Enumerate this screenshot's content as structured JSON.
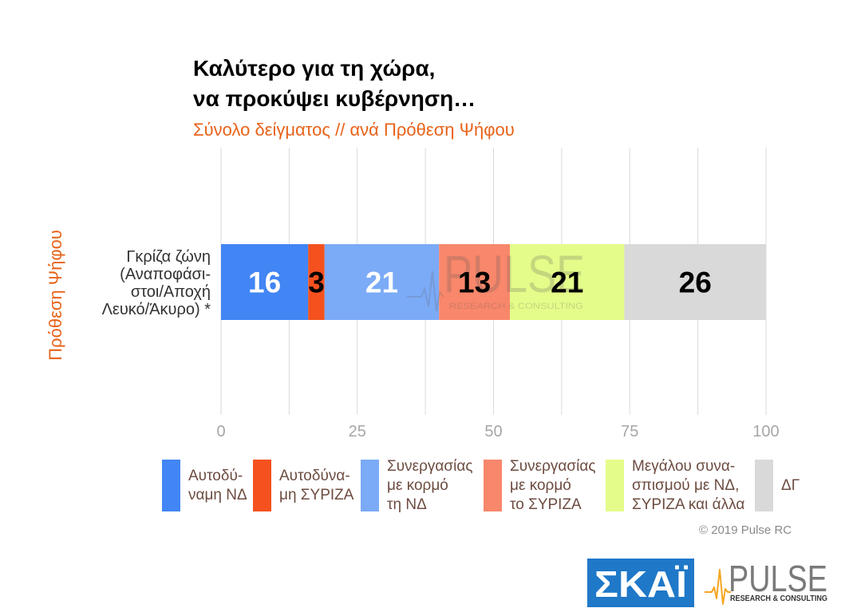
{
  "chart_data": {
    "type": "bar",
    "orientation": "horizontal",
    "stacked": true,
    "title": [
      "Καλύτερο για τη χώρα,",
      "να προκύψει κυβέρνηση…"
    ],
    "subtitle": "Σύνολο δείγματος // ανά Πρόθεση Ψήφου",
    "xlabel": "",
    "ylabel": "Πρόθεση Ψήφου",
    "categories": [
      [
        "Γκρίζα ζώνη",
        "(Αναποφάσι-",
        "στοι/Αποχή",
        "Λευκό/Άκυρο) *"
      ]
    ],
    "xlim": [
      0,
      100
    ],
    "xticks": [
      0,
      25,
      50,
      75,
      100
    ],
    "grid": true,
    "grid_step": 12.5,
    "legend_position": "bottom",
    "series": [
      {
        "name": [
          "Αυτοδύ-",
          "ναμη ΝΔ"
        ],
        "values": [
          16
        ],
        "color": "#4285F4",
        "label_color": "#FFFFFF"
      },
      {
        "name": [
          "Αυτοδύνα-",
          "μη ΣΥΡΙΖΑ"
        ],
        "values": [
          3
        ],
        "color": "#F4511E",
        "label_color": "#000000"
      },
      {
        "name": [
          "Συνεργασίας",
          "με κορμό",
          "τη ΝΔ"
        ],
        "values": [
          21
        ],
        "color": "#7BAAF7",
        "label_color": "#FFFFFF"
      },
      {
        "name": [
          "Συνεργασίας",
          "με κορμό",
          "το ΣΥΡΙΖΑ"
        ],
        "values": [
          13
        ],
        "color": "#F8876B",
        "label_color": "#000000"
      },
      {
        "name": [
          "Μεγάλου συνα-",
          "σπισμού με ΝΔ,",
          "ΣΥΡΙΖΑ και άλλα"
        ],
        "values": [
          21
        ],
        "color": "#E4FC8A",
        "label_color": "#000000"
      },
      {
        "name": [
          "ΔΓ"
        ],
        "values": [
          26
        ],
        "color": "#D9D9D9",
        "label_color": "#000000"
      }
    ]
  },
  "colors": {
    "title": "#000000",
    "accent": "#E8631A",
    "legend_text": "#6D4C41",
    "grid": "#DADADA",
    "tick": "#A6A6A6",
    "skai_blue": "#1F78C8",
    "pulse_gray": "#7A7A7A",
    "pulse_orange": "#F5A623"
  },
  "copyright": "© 2019 Pulse RC",
  "logos": {
    "skai": "ΣΚΑΪ",
    "pulse": {
      "name": "PULSE",
      "tagline": "RESEARCH & CONSULTING"
    }
  },
  "watermark": {
    "name": "PULSE",
    "tagline": "RESEARCH & CONSULTING"
  }
}
